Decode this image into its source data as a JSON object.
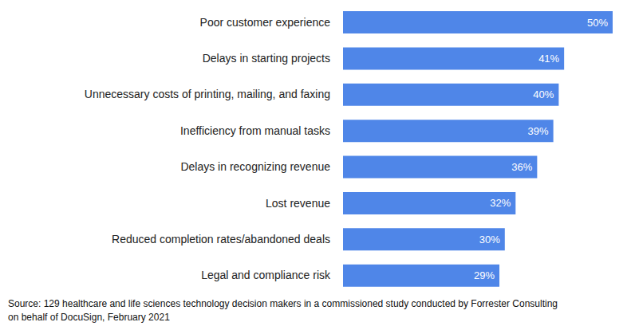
{
  "chart_data": {
    "type": "bar",
    "orientation": "horizontal",
    "categories": [
      "Poor customer experience",
      "Delays in starting projects",
      "Unnecessary costs of printing, mailing, and faxing",
      "Inefficiency from manual tasks",
      "Delays in recognizing revenue",
      "Lost revenue",
      "Reduced completion rates/abandoned deals",
      "Legal and compliance risk"
    ],
    "values": [
      50,
      41,
      40,
      39,
      36,
      32,
      30,
      29
    ],
    "value_labels": [
      "50%",
      "41%",
      "40%",
      "39%",
      "36%",
      "32%",
      "30%",
      "29%"
    ],
    "color": "#4f86e8",
    "data_labels": true,
    "tick_labels": "y",
    "grid": false,
    "annotations": [
      "Source: 129 healthcare and life sciences technology decision makers in a commissioned study conducted by Forrester Consulting",
      "on behalf of DocuSign, February 2021"
    ]
  }
}
